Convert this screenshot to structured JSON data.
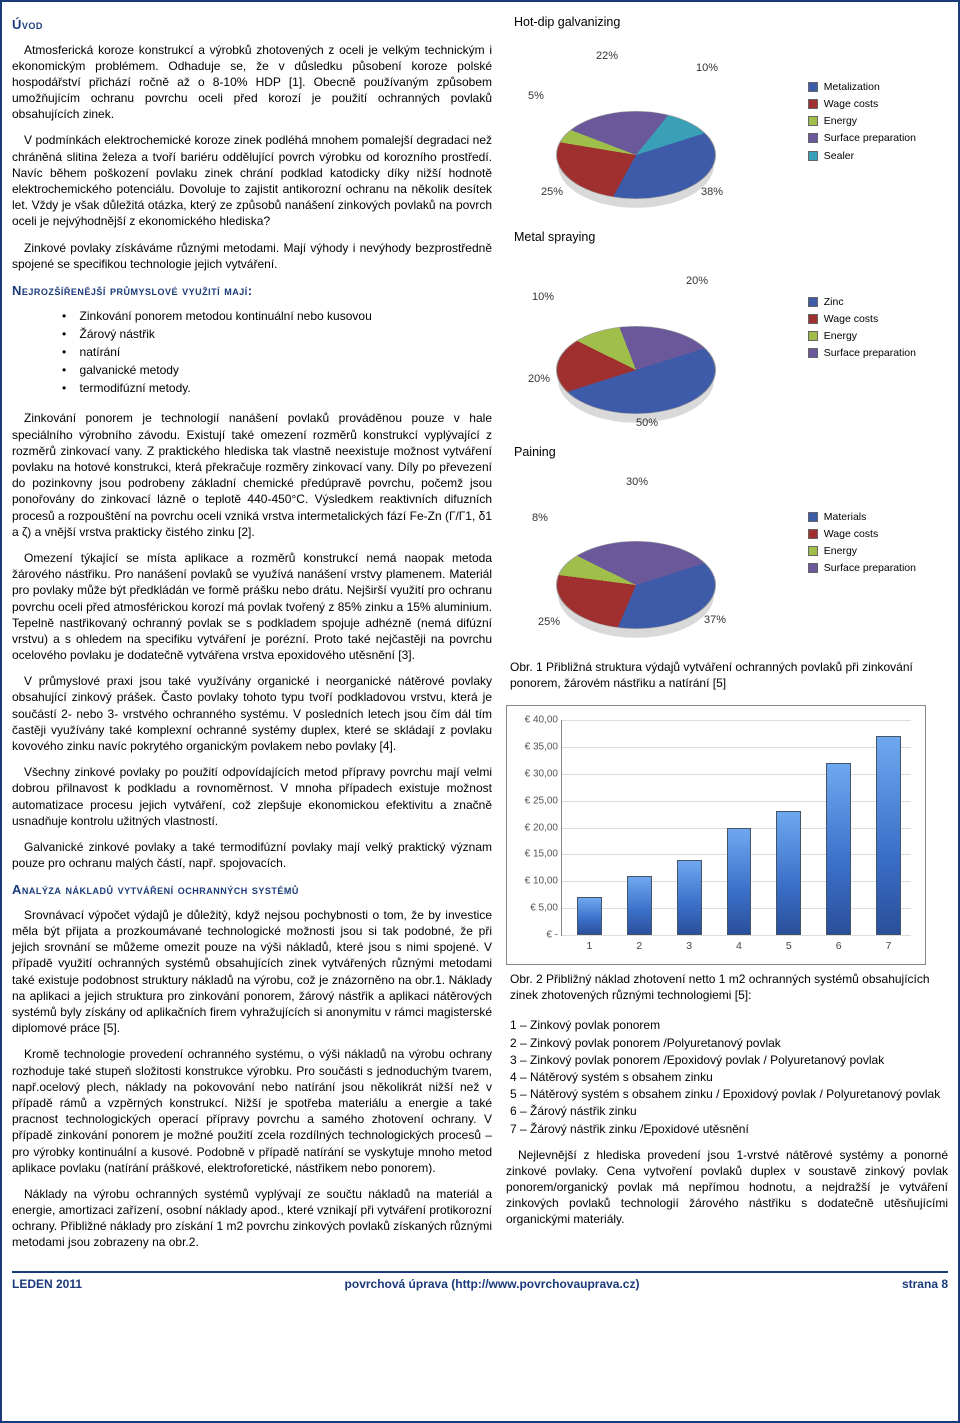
{
  "sections": {
    "intro_title": "Úvod",
    "methods_title": "Nejrozšířenější průmyslové využití mají:",
    "analysis_title": "Analýza nákladů vytváření ochranných systémů"
  },
  "paragraphs": {
    "p1": "Atmosferická koroze konstrukcí a výrobků zhotovených z oceli je velkým technickým i ekonomickým problémem. Odhaduje se, že v důsledku působení koroze polské hospodářství přichází ročně až o 8-10% HDP [1]. Obecně používaným způsobem umožňujícím ochranu povrchu oceli před korozí je použití ochranných povlaků obsahujících zinek.",
    "p2": "V podmínkách elektrochemické koroze zinek podléhá mnohem pomalejší degradaci než chráněná slitina železa a tvoří bariéru oddělující povrch výrobku od korozního prostředí. Navíc během poškození povlaku zinek chrání podklad katodicky díky nižší hodnotě elektrochemického potenciálu. Dovoluje to zajistit antikorozní ochranu na několik desítek let. Vždy je však důležitá otázka, který ze způsobů nanášení zinkových povlaků na povrch oceli je nejvýhodnější z ekonomického hlediska?",
    "p3": "Zinkové povlaky získáváme různými metodami. Mají výhody i nevýhody bezprostředně spojené se specifikou technologie jejich vytváření.",
    "p4": "Zinkování ponorem je technologií nanášení povlaků prováděnou pouze v hale speciálního výrobního závodu. Existují také omezení rozměrů konstrukcí vyplývající z rozměrů zinkovací vany. Z praktického hlediska tak vlastně neexistuje možnost vytváření povlaku na hotové konstrukci, která překračuje rozměry zinkovací vany. Díly po převezení do pozinkovny jsou podrobeny základní chemické předúpravě povrchu, počemž jsou ponořovány do zinkovací lázně o teplotě 440-450°C. Výsledkem reaktivních difuzních procesů a rozpouštění na povrchu oceli vzniká vrstva intermetalických fází Fe-Zn (Г/Г1, δ1 a ζ) a vnější vrstva prakticky čistého zinku [2].",
    "p5": "Omezení týkající se místa aplikace a rozměrů konstrukcí nemá naopak metoda žárového nástřiku. Pro nanášení povlaků se využívá nanášení vrstvy plamenem. Materiál pro povlaky může být předkládán ve formě prášku nebo drátu. Nejširší využití pro ochranu povrchu oceli před atmosférickou korozí má povlak tvořený z 85% zinku a 15% aluminium. Tepelně nastřikovaný ochranný povlak se s podkladem spojuje adhézně (nemá difúzní vrstvu) a s ohledem na specifiku vytváření je porézní. Proto také nejčastěji na povrchu ocelového povlaku je dodatečně vytvářena vrstva epoxidového utěsnění [3].",
    "p6": "V průmyslové praxi jsou také využívány organické i neorganické nátěrové povlaky obsahující zinkový prášek. Často povlaky tohoto typu tvoří podkladovou vrstvu, která je součástí 2- nebo 3- vrstvého ochranného systému. V posledních letech jsou čím dál tím častěji využívány také komplexní ochranné systémy duplex, které se skládají z povlaku kovového zinku navíc pokrytého organickým povlakem nebo povlaky [4].",
    "p7": "Všechny zinkové povlaky po použití odpovídajících metod přípravy povrchu mají velmi dobrou přilnavost k podkladu a rovnoměrnost. V mnoha případech existuje možnost automatizace procesu jejich vytváření, což zlepšuje ekonomickou efektivitu a značně usnadňuje kontrolu užitných vlastností.",
    "p8": "Galvanické zinkové povlaky a také termodifúzní povlaky mají velký praktický význam pouze pro ochranu malých částí, např. spojovacích.",
    "p9": "Srovnávací výpočet výdajů je důležitý, když nejsou pochybnosti o tom, že by investice měla být přijata a prozkoumávané technologické možnosti jsou si tak podobné, že při jejich srovnání se můžeme omezit pouze na výši nákladů, které jsou s nimi spojené. V případě využití ochranných systémů obsahujících zinek vytvářených různými metodami také existuje podobnost struktury nákladů na výrobu, což je znázorněno na obr.1. Náklady na aplikaci a jejich struktura pro zinkování ponorem, žárový nástřik a aplikaci nátěrových systémů byly získány od aplikačních firem vyhražujících si anonymitu v rámci magisterské diplomové práce [5].",
    "p10": "Kromě technologie provedení ochranného systému, o výši nákladů na výrobu ochrany rozhoduje také stupeň složitosti konstrukce výrobku. Pro součásti s jednoduchým tvarem, např.ocelový plech, náklady na pokovování nebo natírání jsou několikrát nižší než v případě rámů a vzpěrných konstrukcí. Nižší je spotřeba materiálu a energie a také pracnost technologických operací přípravy povrchu a samého zhotovení ochrany. V případě zinkování ponorem je možné použití zcela rozdílných technologických procesů – pro výrobky kontinuální a kusové. Podobně v případě natírání se vyskytuje mnoho metod aplikace povlaku (natírání práškové, elektroforetické, nástřikem nebo ponorem).",
    "p11": "Náklady na výrobu ochranných systémů vyplývají ze součtu nákladů na materiál a energie, amortizaci zařízení, osobní náklady apod., které vznikají při vytváření protikorozní ochrany. Přibližné náklady pro získání 1 m2 povrchu zinkových povlaků získaných různými metodami jsou zobrazeny na obr.2."
  },
  "methods": [
    "Zinkování ponorem metodou kontinuální nebo kusovou",
    "Žárový nástřik",
    "natírání",
    "galvanické metody",
    "termodifúzní metody."
  ],
  "pie1": {
    "title": "Hot-dip galvanizing",
    "slices": [
      {
        "label": "Metalization",
        "pct": 38,
        "color": "#3d5ba8"
      },
      {
        "label": "Wage costs",
        "pct": 25,
        "color": "#a03030"
      },
      {
        "label": "Energy",
        "pct": 5,
        "color": "#9fbf4a"
      },
      {
        "label": "Surface preparation",
        "pct": 22,
        "color": "#6a589a"
      },
      {
        "label": "Sealer",
        "pct": 10,
        "color": "#3aa0b8"
      }
    ],
    "label_positions": {
      "38": "br",
      "25": "bl",
      "5": "tl",
      "22": "tc",
      "10": "tr"
    }
  },
  "pie2": {
    "title": "Metal spraying",
    "slices": [
      {
        "label": "Zinc",
        "pct": 50,
        "color": "#3d5ba8"
      },
      {
        "label": "Wage costs",
        "pct": 20,
        "color": "#a03030"
      },
      {
        "label": "Energy",
        "pct": 10,
        "color": "#9fbf4a"
      },
      {
        "label": "Surface preparation",
        "pct": 20,
        "color": "#6a589a"
      }
    ],
    "label_positions": {
      "50": "bc",
      "20a": "bl",
      "10": "tl",
      "20b": "tr"
    }
  },
  "pie3": {
    "title": "Paining",
    "slices": [
      {
        "label": "Materials",
        "pct": 37,
        "color": "#3d5ba8"
      },
      {
        "label": "Wage costs",
        "pct": 25,
        "color": "#a03030"
      },
      {
        "label": "Energy",
        "pct": 8,
        "color": "#9fbf4a"
      },
      {
        "label": "Surface preparation",
        "pct": 30,
        "color": "#6a589a"
      }
    ],
    "label_positions": {
      "37": "br",
      "25": "bl",
      "8": "tl",
      "30": "tc"
    }
  },
  "fig1_caption": "Obr. 1 Přibližná struktura výdajů vytváření ochranných povlaků při zinkování ponorem, žárovém nástřiku a natírání [5]",
  "bar": {
    "ylabels": [
      "€ 40,00",
      "€ 35,00",
      "€ 30,00",
      "€ 25,00",
      "€ 20,00",
      "€ 15,00",
      "€ 10,00",
      "€ 5,00",
      "€ -"
    ],
    "ymax": 40,
    "xs": [
      "1",
      "2",
      "3",
      "4",
      "5",
      "6",
      "7"
    ],
    "values": [
      7,
      11,
      14,
      20,
      23,
      32,
      37
    ]
  },
  "fig2_caption": "Obr. 2 Přibližný náklad zhotovení netto 1 m2 ochranných systémů obsahujících zinek zhotovených různými technologiemi [5]:",
  "legend_items": [
    "1 – Zinkový povlak ponorem",
    "2 – Zinkový povlak ponorem /Polyuretanový povlak",
    "3 – Zinkový povlak ponorem /Epoxidový povlak / Polyuretanový povlak",
    "4 – Nátěrový systém s obsahem zinku",
    "5 – Nátěrový systém s obsahem zinku / Epoxidový povlak / Polyuretanový povlak",
    "6 – Žárový nástřik zinku",
    "7 – Žárový nástřik zinku /Epoxidové utěsnění"
  ],
  "closing": "Nejlevnější z hlediska provedení jsou 1-vrstvé nátěrové systémy a ponorné zinkové povlaky. Cena vytvoření povlaků duplex v soustavě zinkový povlak ponorem/organický povlak má nepřímou hodnotu, a nejdražší je vytváření zinkových povlaků technologií žárového nástřiku s dodatečně utěsňujícími organickými materiály.",
  "footer": {
    "left": "LEDEN 2011",
    "center": "povrchová úprava (http://www.povrchovauprava.cz)",
    "right": "strana 8"
  }
}
